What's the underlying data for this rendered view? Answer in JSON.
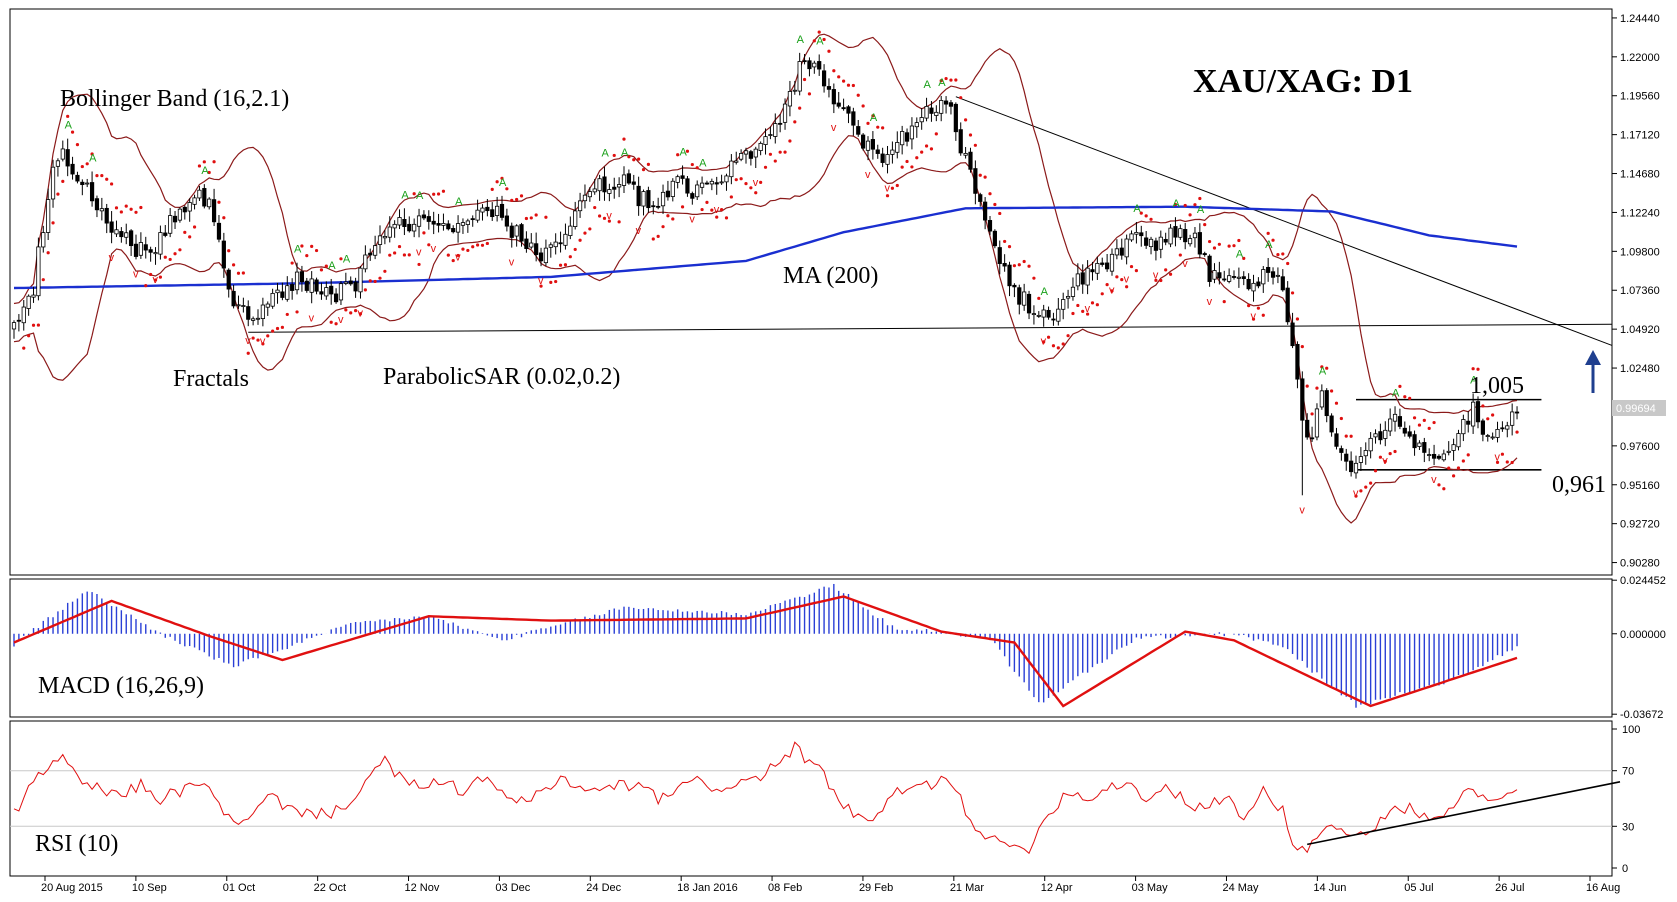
{
  "chart_data": {
    "type": "candlestick",
    "symbol_title": "XAU/XAG: D1",
    "last_price_tag": "0.99694",
    "x_ticks": [
      "20 Aug 2015",
      "10 Sep",
      "01 Oct",
      "22 Oct",
      "12 Nov",
      "03 Dec",
      "24 Dec",
      "18 Jan 2016",
      "08 Feb",
      "29 Feb",
      "21 Mar",
      "12 Apr",
      "03 May",
      "24 May",
      "14 Jun",
      "05 Jul",
      "26 Jul",
      "16 Aug"
    ],
    "price_axis": {
      "ticks": [
        "1.24440",
        "1.22000",
        "1.19560",
        "1.17120",
        "1.14680",
        "1.12240",
        "1.09800",
        "1.07360",
        "1.04920",
        "1.02480",
        "1.00040",
        "0.97600",
        "0.95160",
        "0.92720",
        "0.90280"
      ],
      "range": [
        0.895,
        1.25
      ]
    },
    "indicator_labels": {
      "bollinger": "Bollinger Band (16,2.1)",
      "fractals": "Fractals",
      "sar": "ParabolicSAR (0.02,0.2)",
      "ma": "MA (200)",
      "macd": "MACD (16,26,9)",
      "rsi": "RSI (10)"
    },
    "levels": {
      "resistance_label": "1,005",
      "resistance_value": 1.005,
      "support_label": "0,961",
      "support_value": 0.961,
      "long_horizontal_value": 1.051
    },
    "price_anchors": [
      [
        0,
        1.052
      ],
      [
        4,
        1.075
      ],
      [
        6,
        1.115
      ],
      [
        8,
        1.15
      ],
      [
        10,
        1.165
      ],
      [
        13,
        1.14
      ],
      [
        16,
        1.135
      ],
      [
        19,
        1.118
      ],
      [
        22,
        1.108
      ],
      [
        25,
        1.1
      ],
      [
        28,
        1.098
      ],
      [
        31,
        1.11
      ],
      [
        34,
        1.125
      ],
      [
        37,
        1.135
      ],
      [
        40,
        1.13
      ],
      [
        43,
        1.085
      ],
      [
        46,
        1.062
      ],
      [
        49,
        1.052
      ],
      [
        52,
        1.065
      ],
      [
        55,
        1.072
      ],
      [
        58,
        1.08
      ],
      [
        61,
        1.078
      ],
      [
        64,
        1.073
      ],
      [
        67,
        1.072
      ],
      [
        70,
        1.076
      ],
      [
        72,
        1.095
      ],
      [
        75,
        1.108
      ],
      [
        78,
        1.118
      ],
      [
        81,
        1.115
      ],
      [
        84,
        1.12
      ],
      [
        88,
        1.112
      ],
      [
        92,
        1.12
      ],
      [
        96,
        1.128
      ],
      [
        100,
        1.118
      ],
      [
        104,
        1.105
      ],
      [
        108,
        1.098
      ],
      [
        112,
        1.108
      ],
      [
        116,
        1.13
      ],
      [
        119,
        1.138
      ],
      [
        122,
        1.14
      ],
      [
        125,
        1.145
      ],
      [
        128,
        1.132
      ],
      [
        131,
        1.127
      ],
      [
        134,
        1.137
      ],
      [
        137,
        1.14
      ],
      [
        140,
        1.135
      ],
      [
        143,
        1.14
      ],
      [
        146,
        1.15
      ],
      [
        149,
        1.155
      ],
      [
        152,
        1.16
      ],
      [
        155,
        1.17
      ],
      [
        158,
        1.185
      ],
      [
        160,
        1.205
      ],
      [
        162,
        1.218
      ],
      [
        164,
        1.215
      ],
      [
        166,
        1.198
      ],
      [
        168,
        1.19
      ],
      [
        171,
        1.18
      ],
      [
        174,
        1.165
      ],
      [
        177,
        1.158
      ],
      [
        180,
        1.162
      ],
      [
        183,
        1.172
      ],
      [
        186,
        1.185
      ],
      [
        189,
        1.188
      ],
      [
        192,
        1.192
      ],
      [
        194,
        1.165
      ],
      [
        197,
        1.135
      ],
      [
        200,
        1.105
      ],
      [
        203,
        1.085
      ],
      [
        206,
        1.07
      ],
      [
        209,
        1.062
      ],
      [
        212,
        1.058
      ],
      [
        215,
        1.065
      ],
      [
        218,
        1.078
      ],
      [
        221,
        1.085
      ],
      [
        224,
        1.09
      ],
      [
        227,
        1.098
      ],
      [
        230,
        1.11
      ],
      [
        233,
        1.1
      ],
      [
        236,
        1.108
      ],
      [
        239,
        1.112
      ],
      [
        242,
        1.105
      ],
      [
        245,
        1.085
      ],
      [
        248,
        1.077
      ],
      [
        251,
        1.082
      ],
      [
        254,
        1.075
      ],
      [
        257,
        1.09
      ],
      [
        260,
        1.075
      ],
      [
        262,
        1.04
      ],
      [
        264,
        0.99
      ],
      [
        266,
        0.985
      ],
      [
        268,
        1.01
      ],
      [
        270,
        0.985
      ],
      [
        272,
        0.968
      ],
      [
        275,
        0.962
      ],
      [
        278,
        0.975
      ],
      [
        281,
        0.99
      ],
      [
        284,
        0.992
      ],
      [
        287,
        0.978
      ],
      [
        290,
        0.968
      ],
      [
        293,
        0.97
      ],
      [
        296,
        0.985
      ],
      [
        299,
        0.998
      ],
      [
        302,
        0.982
      ],
      [
        305,
        0.988
      ],
      [
        308,
        0.997
      ]
    ],
    "sma200_anchors": [
      [
        0,
        1.075
      ],
      [
        60,
        1.078
      ],
      [
        110,
        1.082
      ],
      [
        150,
        1.092
      ],
      [
        170,
        1.11
      ],
      [
        195,
        1.125
      ],
      [
        240,
        1.126
      ],
      [
        270,
        1.123
      ],
      [
        290,
        1.108
      ],
      [
        308,
        1.101
      ]
    ],
    "macd": {
      "ticks": [
        "0.024452",
        "0.000000",
        "-0.03672"
      ],
      "range": [
        -0.038,
        0.025
      ],
      "signal_anchors": [
        [
          0,
          -0.004
        ],
        [
          20,
          0.015
        ],
        [
          40,
          -0.001
        ],
        [
          55,
          -0.012
        ],
        [
          85,
          0.008
        ],
        [
          110,
          0.006
        ],
        [
          150,
          0.007
        ],
        [
          170,
          0.017
        ],
        [
          190,
          0.001
        ],
        [
          205,
          -0.004
        ],
        [
          215,
          -0.033
        ],
        [
          240,
          0.001
        ],
        [
          250,
          -0.003
        ],
        [
          278,
          -0.033
        ],
        [
          308,
          -0.011
        ]
      ],
      "hist_anchors": [
        [
          0,
          -0.005
        ],
        [
          15,
          0.02
        ],
        [
          30,
          0.0
        ],
        [
          45,
          -0.015
        ],
        [
          70,
          0.005
        ],
        [
          85,
          0.008
        ],
        [
          100,
          -0.003
        ],
        [
          125,
          0.012
        ],
        [
          150,
          0.009
        ],
        [
          168,
          0.022
        ],
        [
          180,
          0.003
        ],
        [
          200,
          -0.002
        ],
        [
          210,
          -0.032
        ],
        [
          230,
          -0.002
        ],
        [
          250,
          0.0
        ],
        [
          260,
          -0.006
        ],
        [
          275,
          -0.033
        ],
        [
          295,
          -0.021
        ],
        [
          308,
          -0.006
        ]
      ]
    },
    "rsi": {
      "ticks": [
        "100",
        "70",
        "30",
        "0"
      ],
      "range": [
        0,
        100
      ],
      "level_lines": [
        70,
        30
      ],
      "anchors": [
        [
          0,
          40
        ],
        [
          6,
          70
        ],
        [
          10,
          78
        ],
        [
          14,
          62
        ],
        [
          18,
          55
        ],
        [
          22,
          52
        ],
        [
          26,
          60
        ],
        [
          30,
          50
        ],
        [
          34,
          55
        ],
        [
          38,
          62
        ],
        [
          42,
          48
        ],
        [
          45,
          30
        ],
        [
          48,
          33
        ],
        [
          52,
          52
        ],
        [
          56,
          44
        ],
        [
          60,
          40
        ],
        [
          64,
          38
        ],
        [
          68,
          46
        ],
        [
          72,
          62
        ],
        [
          76,
          76
        ],
        [
          80,
          62
        ],
        [
          84,
          58
        ],
        [
          88,
          62
        ],
        [
          92,
          55
        ],
        [
          96,
          66
        ],
        [
          100,
          52
        ],
        [
          104,
          48
        ],
        [
          108,
          52
        ],
        [
          112,
          66
        ],
        [
          116,
          56
        ],
        [
          120,
          55
        ],
        [
          124,
          60
        ],
        [
          128,
          58
        ],
        [
          132,
          50
        ],
        [
          136,
          56
        ],
        [
          140,
          62
        ],
        [
          144,
          58
        ],
        [
          148,
          60
        ],
        [
          152,
          64
        ],
        [
          156,
          74
        ],
        [
          160,
          86
        ],
        [
          162,
          80
        ],
        [
          165,
          70
        ],
        [
          168,
          55
        ],
        [
          172,
          38
        ],
        [
          176,
          32
        ],
        [
          180,
          52
        ],
        [
          184,
          58
        ],
        [
          188,
          60
        ],
        [
          192,
          64
        ],
        [
          196,
          35
        ],
        [
          200,
          20
        ],
        [
          204,
          15
        ],
        [
          208,
          15
        ],
        [
          212,
          40
        ],
        [
          216,
          55
        ],
        [
          220,
          50
        ],
        [
          224,
          58
        ],
        [
          228,
          62
        ],
        [
          232,
          50
        ],
        [
          236,
          58
        ],
        [
          240,
          48
        ],
        [
          244,
          42
        ],
        [
          248,
          52
        ],
        [
          252,
          35
        ],
        [
          256,
          55
        ],
        [
          260,
          42
        ],
        [
          263,
          10
        ],
        [
          266,
          18
        ],
        [
          270,
          32
        ],
        [
          274,
          22
        ],
        [
          278,
          26
        ],
        [
          282,
          42
        ],
        [
          286,
          44
        ],
        [
          290,
          32
        ],
        [
          294,
          40
        ],
        [
          298,
          56
        ],
        [
          302,
          48
        ],
        [
          305,
          50
        ],
        [
          308,
          58
        ]
      ],
      "trend_line": [
        [
          265,
          17
        ],
        [
          308,
          58
        ]
      ]
    }
  }
}
